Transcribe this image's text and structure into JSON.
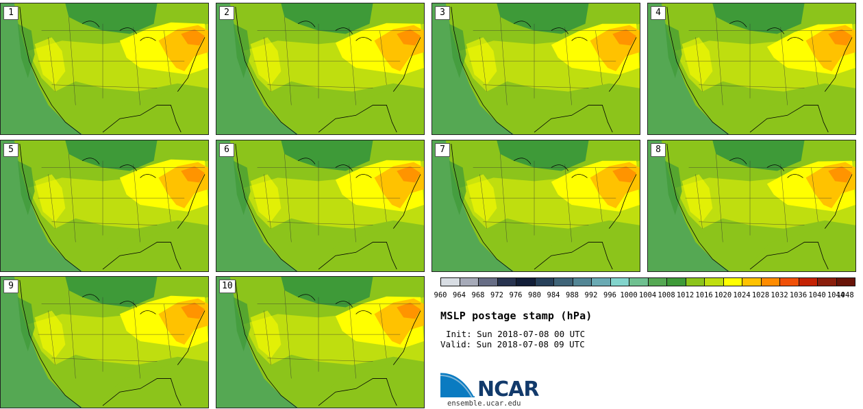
{
  "members": [
    "1",
    "2",
    "3",
    "4",
    "5",
    "6",
    "7",
    "8",
    "9",
    "10"
  ],
  "colorbar": {
    "levels": [
      "960",
      "964",
      "968",
      "972",
      "976",
      "980",
      "984",
      "988",
      "992",
      "996",
      "1000",
      "1004",
      "1008",
      "1012",
      "1016",
      "1020",
      "1024",
      "1028",
      "1032",
      "1036",
      "1040",
      "1044",
      "1048"
    ],
    "colors": [
      "#d8dde3",
      "#a6aab8",
      "#676d85",
      "#283450",
      "#121e38",
      "#27405a",
      "#3f6478",
      "#538695",
      "#6aaab3",
      "#82d4cc",
      "#6fc090",
      "#55a853",
      "#3e9a38",
      "#8cc41b",
      "#bfde0f",
      "#ffff00",
      "#ffc200",
      "#ff8c00",
      "#f05008",
      "#c42204",
      "#8a1e0c",
      "#681408"
    ]
  },
  "title": "MSLP postage stamp (hPa)",
  "init": "Init: Sun 2018-07-08 00 UTC",
  "valid": "Valid: Sun 2018-07-08 09 UTC",
  "logo": {
    "name": "NCAR"
  },
  "site": "ensemble.ucar.edu",
  "field_colors": {
    "ocean": "#55a853",
    "low_plains": "#8cc41b",
    "mid": "#bfde0f",
    "high": "#ffff00",
    "higher": "#ffc200",
    "peak": "#ff8c00",
    "northern": "#3e9a38"
  }
}
